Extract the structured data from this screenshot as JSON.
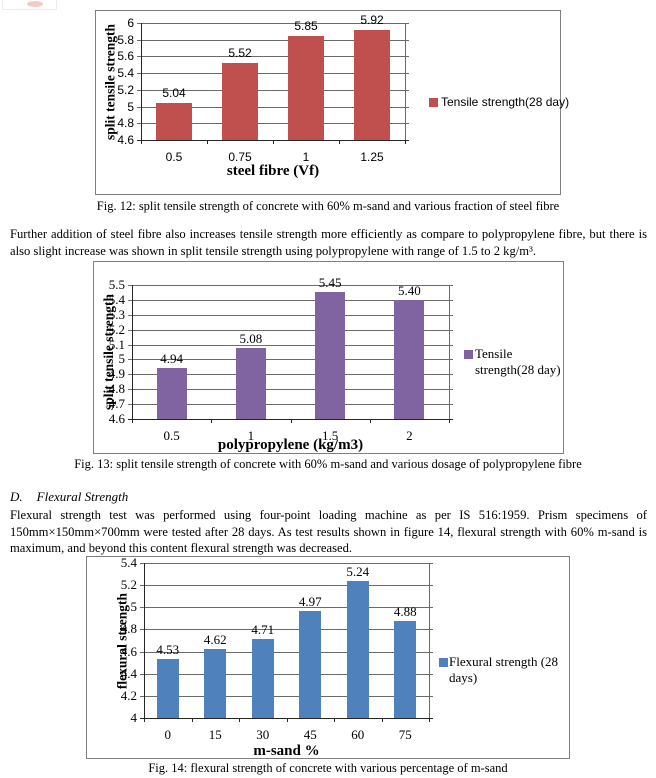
{
  "document": {
    "paragraph_steel": "Further addition of steel fibre also increases tensile strength more efficiently as compare to polypropylene fibre, but there is also slight increase was shown in split tensile strength using polypropylene with range of 1.5 to 2 kg/m³.",
    "section_label": "D.",
    "section_title": "Flexural Strength",
    "paragraph_flexural": "Flexural strength test was performed using four-point loading machine as per IS 516:1959. Prism specimens of 150mm×150mm×700mm were tested after 28 days.  As test results shown in figure 14, flexural strength with 60% m-sand is maximum, and beyond this content flexural strength was decreased.",
    "captions": {
      "fig12": "Fig. 12: split tensile strength of concrete with 60% m-sand and various fraction of steel fibre",
      "fig13": "Fig. 13: split tensile strength of concrete with 60% m-sand and various dosage of polypropylene fibre",
      "fig14": "Fig. 14: flexural strength of concrete with various percentage of m-sand"
    }
  },
  "chart_data": [
    {
      "type": "bar",
      "categories": [
        "0.5",
        "0.75",
        "1",
        "1.25"
      ],
      "values": [
        5.04,
        5.52,
        5.85,
        5.92
      ],
      "data_labels": [
        "5.04",
        "5.52",
        "5.85",
        "5.92"
      ],
      "xlabel": "steel fibre (Vf)",
      "ylabel": "split tensile strength",
      "ylim": [
        4.6,
        6.0
      ],
      "ytick_step": 0.2,
      "ytick_labels": [
        "4.6",
        "4.8",
        "5",
        "5.2",
        "5.4",
        "5.6",
        "5.8",
        "6"
      ],
      "legend": "Tensile strength(28 day)",
      "legend_position": "right",
      "grid": true,
      "bar_color": "#C0504D"
    },
    {
      "type": "bar",
      "categories": [
        "0.5",
        "1",
        "1.5",
        "2"
      ],
      "values": [
        4.94,
        5.08,
        5.45,
        5.4
      ],
      "data_labels": [
        "4.94",
        "5.08",
        "5.45",
        "5.40"
      ],
      "xlabel": "polypropylene (kg/m3)",
      "ylabel": "split tensile strength",
      "ylim": [
        4.6,
        5.5
      ],
      "ytick_step": 0.1,
      "ytick_labels": [
        "4.6",
        "4.7",
        "4.8",
        "4.9",
        "5",
        "5.1",
        "5.2",
        "5.3",
        "5.4",
        "5.5"
      ],
      "legend": "Tensile\nstrength(28 day)",
      "legend_position": "right",
      "grid": true,
      "bar_color": "#8064A2"
    },
    {
      "type": "bar",
      "categories": [
        "0",
        "15",
        "30",
        "45",
        "60",
        "75"
      ],
      "values": [
        4.53,
        4.62,
        4.71,
        4.97,
        5.24,
        4.88
      ],
      "data_labels": [
        "4.53",
        "4.62",
        "4.71",
        "4.97",
        "5.24",
        "4.88"
      ],
      "xlabel": "m-sand %",
      "ylabel": "flexural strength",
      "ylim": [
        4.0,
        5.4
      ],
      "ytick_step": 0.2,
      "ytick_labels": [
        "4",
        "4.2",
        "4.4",
        "4.6",
        "4.8",
        "5",
        "5.2",
        "5.4"
      ],
      "legend": "Flexural strength (28\ndays)",
      "legend_position": "right",
      "grid": true,
      "bar_color": "#4F81BD"
    }
  ]
}
